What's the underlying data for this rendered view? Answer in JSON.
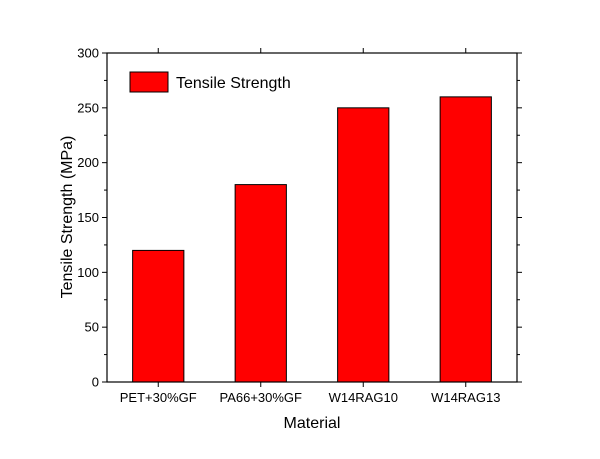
{
  "chart_data": {
    "type": "bar",
    "categories": [
      "PET+30%GF",
      "PA66+30%GF",
      "W14RAG10",
      "W14RAG13"
    ],
    "series": [
      {
        "name": "Tensile Strength",
        "values": [
          120,
          180,
          250,
          260
        ]
      }
    ],
    "xlabel": "Material",
    "ylabel": "Tensile Strength (MPa)",
    "ylim": [
      0,
      300
    ],
    "yticks": [
      0,
      50,
      100,
      150,
      200,
      250,
      300
    ],
    "grid": false,
    "legend": "top-left",
    "bar_color": "#ff0000",
    "bar_edge_color": "#000000"
  }
}
